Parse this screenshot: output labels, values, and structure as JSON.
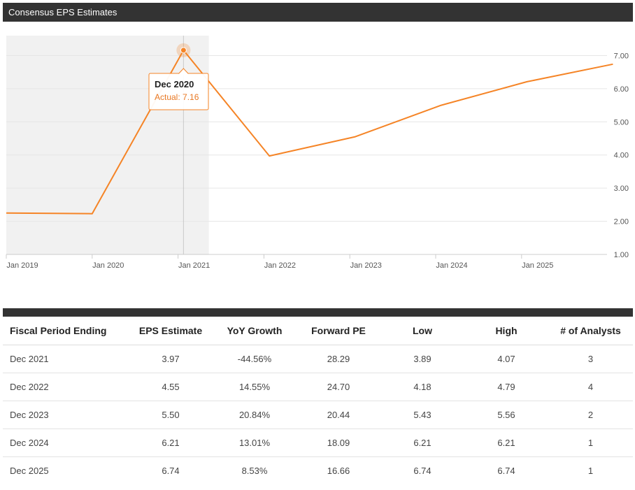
{
  "header": {
    "title": "Consensus EPS Estimates"
  },
  "chart_data": {
    "type": "line",
    "x_ticks": [
      "Jan 2019",
      "Jan 2020",
      "Jan 2021",
      "Jan 2022",
      "Jan 2023",
      "Jan 2024",
      "Jan 2025"
    ],
    "y_ticks": [
      "1.00",
      "2.00",
      "3.00",
      "4.00",
      "5.00",
      "6.00",
      "7.00"
    ],
    "ylim": [
      1,
      7.6
    ],
    "series": [
      {
        "color": "#f58426",
        "points": [
          {
            "x": "Jan 2019",
            "y": 2.25
          },
          {
            "x": "Jan 2020",
            "y": 2.23
          },
          {
            "x": "Dec 2020",
            "y": 7.16
          },
          {
            "x": "Dec 2021",
            "y": 3.97
          },
          {
            "x": "Dec 2022",
            "y": 4.55
          },
          {
            "x": "Dec 2023",
            "y": 5.5
          },
          {
            "x": "Dec 2024",
            "y": 6.21
          },
          {
            "x": "Dec 2025",
            "y": 6.74
          }
        ]
      }
    ],
    "actual_region_end": "Jan 2021",
    "tooltip": {
      "title": "Dec 2020",
      "label": "Actual: 7.16"
    }
  },
  "table": {
    "columns": [
      "Fiscal Period Ending",
      "EPS Estimate",
      "YoY Growth",
      "Forward PE",
      "Low",
      "High",
      "# of Analysts"
    ],
    "rows": [
      [
        "Dec 2021",
        "3.97",
        "-44.56%",
        "28.29",
        "3.89",
        "4.07",
        "3"
      ],
      [
        "Dec 2022",
        "4.55",
        "14.55%",
        "24.70",
        "4.18",
        "4.79",
        "4"
      ],
      [
        "Dec 2023",
        "5.50",
        "20.84%",
        "20.44",
        "5.43",
        "5.56",
        "2"
      ],
      [
        "Dec 2024",
        "6.21",
        "13.01%",
        "18.09",
        "6.21",
        "6.21",
        "1"
      ],
      [
        "Dec 2025",
        "6.74",
        "8.53%",
        "16.66",
        "6.74",
        "6.74",
        "1"
      ]
    ]
  }
}
